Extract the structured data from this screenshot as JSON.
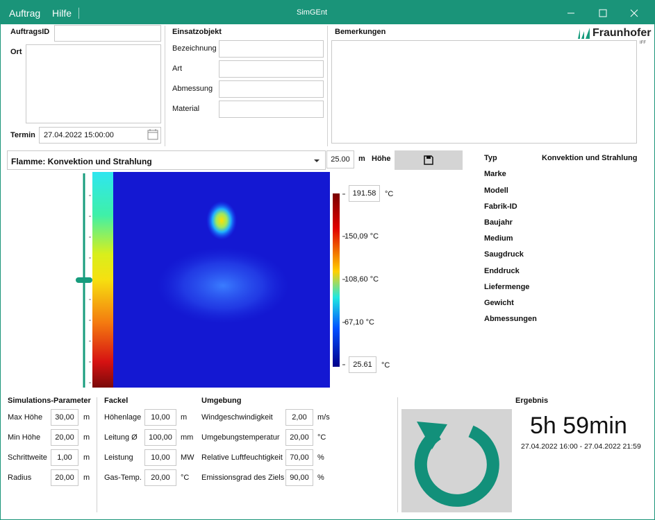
{
  "titlebar": {
    "menu": [
      "Auftrag",
      "Hilfe"
    ],
    "title": "SimGEnt"
  },
  "order": {
    "id_label": "AuftragsID",
    "place_label": "Ort",
    "date_label": "Termin",
    "date_value": "27.04.2022 15:00:00"
  },
  "object": {
    "title": "Einsatzobjekt",
    "fields": [
      "Bezeichnung",
      "Art",
      "Abmessung",
      "Material"
    ]
  },
  "remarks": {
    "title": "Bemerkungen"
  },
  "logo": {
    "name": "Fraunhofer",
    "sub": "IFF"
  },
  "view": {
    "mode": "Flamme: Konvektion und Strahlung",
    "height_value": "25.00",
    "height_unit": "m",
    "height_label": "Höhe"
  },
  "colorbar": {
    "max": "191.58",
    "ticks": [
      "150,09 °C",
      "108,60 °C",
      "67,10 °C"
    ],
    "min": "25.61",
    "unit": "°C"
  },
  "device": {
    "labels": [
      "Typ",
      "Marke",
      "Modell",
      "Fabrik-ID",
      "Baujahr",
      "Medium",
      "Saugdruck",
      "Enddruck",
      "Liefermenge",
      "Gewicht",
      "Abmessungen"
    ],
    "type_value": "Konvektion und Strahlung"
  },
  "simulation": {
    "title": "Simulations-Parameter",
    "params": [
      {
        "label": "Max Höhe",
        "value": "30,00",
        "unit": "m"
      },
      {
        "label": "Min Höhe",
        "value": "20,00",
        "unit": "m"
      },
      {
        "label": "Schrittweite",
        "value": "1,00",
        "unit": "m"
      },
      {
        "label": "Radius",
        "value": "20,00",
        "unit": "m"
      }
    ]
  },
  "torch": {
    "title": "Fackel",
    "params": [
      {
        "label": "Höhenlage",
        "value": "10,00",
        "unit": "m"
      },
      {
        "label": "Leitung Ø",
        "value": "100,00",
        "unit": "mm"
      },
      {
        "label": "Leistung",
        "value": "10,00",
        "unit": "MW"
      },
      {
        "label": "Gas-Temp.",
        "value": "20,00",
        "unit": "°C"
      }
    ]
  },
  "environment": {
    "title": "Umgebung",
    "params": [
      {
        "label": "Windgeschwindigkeit",
        "value": "2,00",
        "unit": "m/s"
      },
      {
        "label": "Umgebungstemperatur",
        "value": "20,00",
        "unit": "°C"
      },
      {
        "label": "Relative Luftfeuchtigkeit",
        "value": "70,00",
        "unit": "%"
      },
      {
        "label": "Emissionsgrad des Ziels",
        "value": "90,00",
        "unit": "%"
      }
    ]
  },
  "result": {
    "title": "Ergebnis",
    "duration": "5h 59min",
    "range": "27.04.2022 16:00 - 27.04.2022 21:59"
  }
}
